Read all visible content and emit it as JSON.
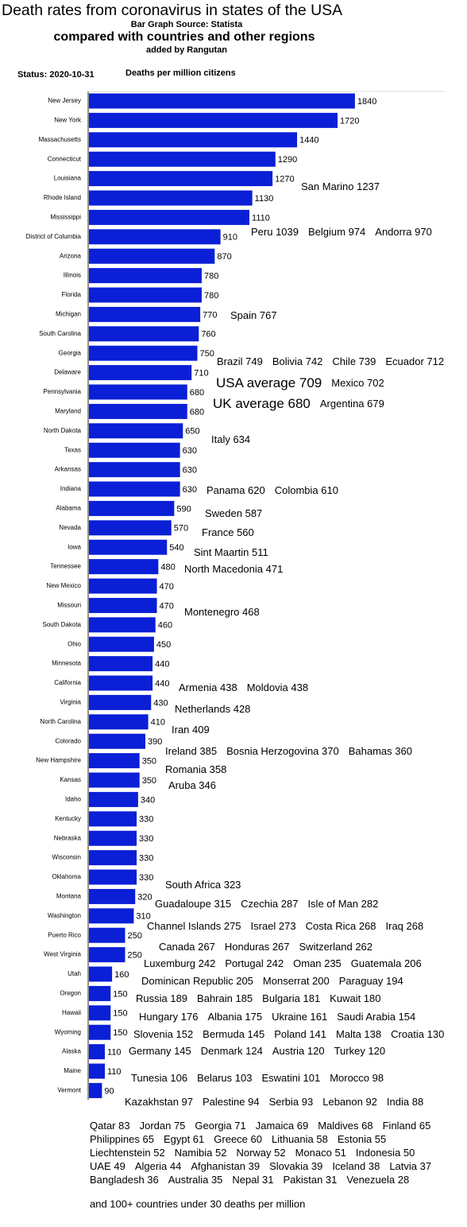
{
  "chart_data": {
    "type": "bar",
    "title": "Death rates from coronavirus in states of the USA",
    "subtitles": [
      "Bar Graph Source: Statista",
      "compared with countries and other regions",
      "added by Rangutan"
    ],
    "status": "Status: 2020-10-31",
    "x_label": "Deaths per million citizens",
    "color": "#0b1fd6",
    "xlim": [
      0,
      2500
    ],
    "categories": [
      "New Jersey",
      "New York",
      "Massachusetts",
      "Connecticut",
      "Louisiana",
      "Rhode Island",
      "Mississippi",
      "District of Columbia",
      "Arizona",
      "Illinois",
      "Florida",
      "Michigan",
      "South Carolina",
      "Georgia",
      "Delaware",
      "Pennsylvania",
      "Maryland",
      "North Dakota",
      "Texas",
      "Arkansas",
      "Indiana",
      "Alabama",
      "Nevada",
      "Iowa",
      "Tennessee",
      "New Mexico",
      "Missouri",
      "South Dakota",
      "Ohio",
      "Minnesota",
      "California",
      "Virginia",
      "North Carolina",
      "Colorado",
      "New Hampshire",
      "Kansas",
      "Idaho",
      "Kentucky",
      "Nebraska",
      "Wisconsin",
      "Oklahoma",
      "Montana",
      "Washington",
      "Puerto Rico",
      "West Virginia",
      "Utah",
      "Oregon",
      "Hawaii",
      "Wyoming",
      "Alaska",
      "Maine",
      "Vermont"
    ],
    "values": [
      1840,
      1720,
      1440,
      1290,
      1270,
      1130,
      1110,
      910,
      870,
      780,
      780,
      770,
      760,
      750,
      710,
      680,
      680,
      650,
      630,
      630,
      630,
      590,
      570,
      540,
      480,
      470,
      470,
      460,
      450,
      440,
      440,
      430,
      410,
      390,
      350,
      350,
      340,
      330,
      330,
      330,
      330,
      320,
      310,
      250,
      250,
      160,
      150,
      150,
      150,
      110,
      110,
      90
    ],
    "annotations": [
      [
        "San Marino 1237"
      ],
      [
        "Peru 1039",
        "Belgium 974",
        "Andorra 970"
      ],
      [
        "Spain 767"
      ],
      [
        "Brazil 749",
        "Bolivia 742",
        "Chile 739",
        "Ecuador 712"
      ],
      [
        "USA average 709",
        "Mexico 702"
      ],
      [
        "UK average 680",
        "Argentina 679"
      ],
      [
        "Italy 634"
      ],
      [
        "Panama 620",
        "Colombia 610"
      ],
      [
        "Sweden 587"
      ],
      [
        "France 560"
      ],
      [
        "Sint Maartin 511"
      ],
      [
        "North Macedonia 471"
      ],
      [
        "Montenegro 468"
      ],
      [
        "Armenia 438",
        "Moldovia 438"
      ],
      [
        "Netherlands 428"
      ],
      [
        "Iran 409"
      ],
      [
        "Ireland 385",
        "Bosnia Herzogovina 370",
        "Bahamas 360"
      ],
      [
        "Romania 358"
      ],
      [
        "Aruba 346"
      ],
      [
        "South Africa 323"
      ],
      [
        "Guadaloupe 315",
        "Czechia 287",
        "Isle of Man 282"
      ],
      [
        "Channel Islands 275",
        "Israel 273",
        "Costa Rica 268",
        "Iraq 268"
      ],
      [
        "Canada 267",
        "Honduras 267",
        "Switzerland 262"
      ],
      [
        "Luxemburg 242",
        "Portugal 242",
        "Oman 235",
        "Guatemala 206"
      ],
      [
        "Dominican Republic 205",
        "Monserrat 200",
        "Paraguay 194"
      ],
      [
        "Russia 189",
        "Bahrain 185",
        "Bulgaria 181",
        "Kuwait 180"
      ],
      [
        "Hungary 176",
        "Albania 175",
        "Ukraine 161",
        "Saudi Arabia 154"
      ],
      [
        "Slovenia 152",
        "Bermuda 145",
        "Poland 141",
        "Malta 138",
        "Croatia 130"
      ],
      [
        "Germany 145",
        "Denmark 124",
        "Austria 120",
        "Turkey 120"
      ],
      [
        "Tunesia 106",
        "Belarus 103",
        "Eswatini 101",
        "Morocco 98"
      ],
      [
        "Kazakhstan 97",
        "Palestine 94",
        "Serbia 93",
        "Lebanon 92",
        "India 88"
      ],
      [
        "Qatar 83",
        "Jordan 75",
        "Georgia 71",
        "Jamaica 69",
        "Maldives 68",
        "Finland 65"
      ],
      [
        "Philippines 65",
        "Egypt 61",
        "Greece 60",
        "Lithuania 58",
        "Estonia 55"
      ],
      [
        "Liechtenstein 52",
        "Namibia 52",
        "Norway 52",
        "Monaco 51",
        "Indonesia 50"
      ],
      [
        "UAE 49",
        "Algeria 44",
        "Afghanistan 39",
        "Slovakia 39",
        "Iceland 38",
        "Latvia 37"
      ],
      [
        "Bangladesh 36",
        "Australia 35",
        "Nepal 31",
        "Pakistan 31",
        "Venezuela 28"
      ]
    ],
    "footnote": "and 100+ countries under 30 deaths per million"
  }
}
